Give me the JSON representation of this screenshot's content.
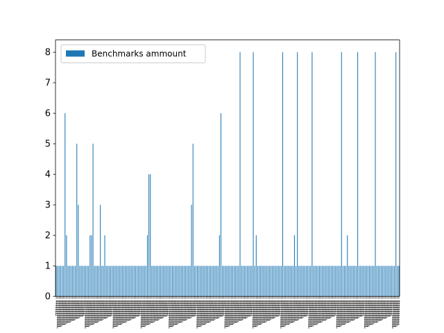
{
  "chart_data": {
    "type": "bar",
    "series": [
      {
        "name": "Benchmarks ammount",
        "color": "#1f77b4",
        "values": [
          1,
          1,
          1,
          1,
          1,
          1,
          6,
          2,
          1,
          1,
          1,
          1,
          1,
          1,
          5,
          3,
          1,
          1,
          1,
          1,
          1,
          1,
          1,
          2,
          2,
          5,
          1,
          1,
          1,
          1,
          3,
          1,
          1,
          2,
          1,
          1,
          1,
          1,
          1,
          1,
          1,
          1,
          1,
          1,
          1,
          1,
          1,
          1,
          1,
          1,
          1,
          1,
          1,
          1,
          1,
          1,
          1,
          1,
          1,
          1,
          1,
          1,
          2,
          4,
          4,
          1,
          1,
          1,
          1,
          1,
          1,
          1,
          1,
          1,
          1,
          1,
          1,
          1,
          1,
          1,
          1,
          1,
          1,
          1,
          1,
          1,
          1,
          1,
          1,
          1,
          1,
          1,
          3,
          5,
          1,
          1,
          1,
          1,
          1,
          1,
          1,
          1,
          1,
          1,
          1,
          1,
          1,
          1,
          1,
          1,
          1,
          2,
          6,
          1,
          1,
          1,
          1,
          1,
          1,
          1,
          1,
          1,
          1,
          1,
          1,
          8,
          1,
          1,
          1,
          1,
          1,
          1,
          1,
          1,
          8,
          1,
          2,
          1,
          1,
          1,
          1,
          1,
          1,
          1,
          1,
          1,
          1,
          1,
          1,
          1,
          1,
          1,
          1,
          1,
          8,
          1,
          1,
          1,
          1,
          1,
          1,
          1,
          2,
          1,
          8,
          1,
          1,
          1,
          1,
          1,
          1,
          1,
          1,
          1,
          8,
          1,
          1,
          1,
          1,
          1,
          1,
          1,
          1,
          1,
          1,
          1,
          1,
          1,
          1,
          1,
          1,
          1,
          1,
          1,
          8,
          1,
          1,
          1,
          2,
          1,
          1,
          1,
          1,
          1,
          1,
          8,
          1,
          1,
          1,
          1,
          1,
          1,
          1,
          1,
          1,
          1,
          1,
          8,
          1,
          1,
          1,
          1,
          1,
          1,
          1,
          1,
          1,
          1,
          1,
          1,
          1,
          8,
          1,
          1
        ]
      }
    ],
    "ylim": [
      0,
      8.4
    ],
    "yticks": [
      "0",
      "1",
      "2",
      "3",
      "4",
      "5",
      "6",
      "7",
      "8"
    ],
    "legend": "top-left",
    "grid": false
  }
}
